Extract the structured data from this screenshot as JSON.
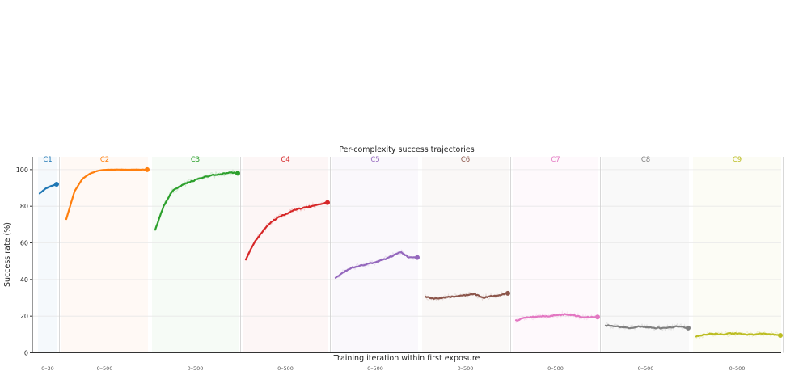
{
  "chart_data": {
    "type": "line",
    "title": "Per-complexity success trajectories",
    "xlabel": "Training iteration within first exposure",
    "ylabel": "Success rate (%)",
    "ylim": [
      0,
      107
    ],
    "y_ticks": [
      0,
      20,
      40,
      60,
      80,
      100
    ],
    "grid": "horizontal",
    "series": [
      {
        "name": "C1",
        "color": "#1f77b4",
        "x_range_label": "0–30",
        "x": [
          0,
          10,
          20,
          30
        ],
        "values": [
          87,
          89.5,
          91,
          92
        ]
      },
      {
        "name": "C2",
        "color": "#ff7f0e",
        "x_range_label": "0–500",
        "x": [
          0,
          50,
          100,
          150,
          200,
          250,
          300,
          350,
          400,
          450,
          500
        ],
        "values": [
          73,
          88,
          95,
          98,
          99.5,
          100,
          100,
          100,
          100,
          100,
          100
        ]
      },
      {
        "name": "C3",
        "color": "#2ca02c",
        "x_range_label": "0–500",
        "x": [
          0,
          50,
          100,
          150,
          200,
          250,
          300,
          350,
          400,
          450,
          500
        ],
        "values": [
          67,
          80,
          88,
          91,
          93,
          94.5,
          96,
          97,
          97.5,
          98.5,
          98
        ]
      },
      {
        "name": "C4",
        "color": "#d62728",
        "x_range_label": "0–500",
        "x": [
          0,
          50,
          100,
          150,
          200,
          250,
          300,
          350,
          400,
          450,
          500
        ],
        "values": [
          51,
          60,
          66,
          71,
          74,
          76,
          78,
          79,
          80,
          81,
          82
        ]
      },
      {
        "name": "C5",
        "color": "#9467bd",
        "x_range_label": "0–500",
        "x": [
          0,
          50,
          100,
          150,
          200,
          250,
          300,
          350,
          400,
          450,
          500
        ],
        "values": [
          41,
          44,
          46.5,
          47.5,
          48.5,
          49.5,
          51,
          53,
          55,
          52,
          52
        ]
      },
      {
        "name": "C6",
        "color": "#8c564b",
        "x_range_label": "0–500",
        "x": [
          0,
          50,
          100,
          150,
          200,
          250,
          300,
          350,
          400,
          450,
          500
        ],
        "values": [
          30.5,
          29.5,
          30,
          30.5,
          31,
          31.5,
          32,
          30,
          31,
          31.5,
          32.5
        ]
      },
      {
        "name": "C7",
        "color": "#e377c2",
        "x_range_label": "0–500",
        "x": [
          0,
          50,
          100,
          150,
          200,
          250,
          300,
          350,
          400,
          450,
          500
        ],
        "values": [
          17.5,
          19,
          19.5,
          20,
          20,
          20.5,
          21,
          20.5,
          19.5,
          19.5,
          19.5
        ]
      },
      {
        "name": "C8",
        "color": "#7f7f7f",
        "x_range_label": "0–500",
        "x": [
          0,
          50,
          100,
          150,
          200,
          250,
          300,
          350,
          400,
          450,
          500
        ],
        "values": [
          15,
          14.5,
          14,
          13.5,
          14.5,
          14,
          13.5,
          13.5,
          14,
          14.5,
          13.5
        ]
      },
      {
        "name": "C9",
        "color": "#bcbd22",
        "x_range_label": "0–500",
        "x": [
          0,
          50,
          100,
          150,
          200,
          250,
          300,
          350,
          400,
          450,
          500
        ],
        "values": [
          9,
          10,
          10.5,
          10,
          10.5,
          10.5,
          10,
          10,
          10.5,
          10,
          9.5
        ]
      }
    ]
  }
}
